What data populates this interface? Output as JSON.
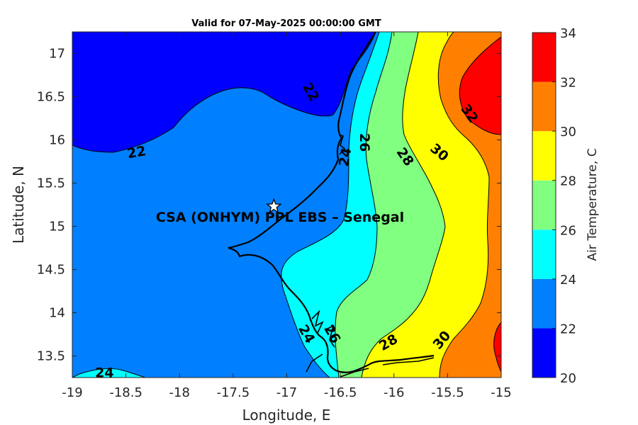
{
  "chart_data": {
    "type": "contour",
    "title": "Valid for 07-May-2025 00:00:00 GMT",
    "xlabel": "Longitude, E",
    "ylabel": "Latitude, N",
    "xlim": [
      -19,
      -15
    ],
    "ylim": [
      13.25,
      17.25
    ],
    "xticks": [
      "-19",
      "-18.5",
      "-18",
      "-17.5",
      "-17",
      "-16.5",
      "-16",
      "-15.5",
      "-15"
    ],
    "yticks": [
      "13.5",
      "14",
      "14.5",
      "15",
      "15.5",
      "16",
      "16.5",
      "17"
    ],
    "colorbar": {
      "label": "Air Temperature, C",
      "ticks": [
        "20",
        "22",
        "24",
        "26",
        "28",
        "30",
        "32",
        "34"
      ],
      "levels": [
        20,
        22,
        24,
        26,
        28,
        30,
        32,
        34
      ],
      "colors": [
        "#0000ff",
        "#0080ff",
        "#00ffff",
        "#80ff80",
        "#ffff00",
        "#ff8000",
        "#ff0000",
        "#800000"
      ]
    },
    "contour_labels": [
      {
        "text": "22",
        "lon": -16.78,
        "lat": 16.55,
        "rotate": 60
      },
      {
        "text": "22",
        "lon": -18.4,
        "lat": 15.85,
        "rotate": -10
      },
      {
        "text": "24",
        "lon": -16.45,
        "lat": 15.8,
        "rotate": -80
      },
      {
        "text": "26",
        "lon": -16.28,
        "lat": 15.97,
        "rotate": 90
      },
      {
        "text": "28",
        "lon": -15.9,
        "lat": 15.8,
        "rotate": 55
      },
      {
        "text": "30",
        "lon": -15.58,
        "lat": 15.85,
        "rotate": 40
      },
      {
        "text": "32",
        "lon": -15.3,
        "lat": 16.3,
        "rotate": 55
      },
      {
        "text": "24",
        "lon": -18.7,
        "lat": 13.3,
        "rotate": 0
      },
      {
        "text": "28",
        "lon": -16.05,
        "lat": 13.65,
        "rotate": -30
      },
      {
        "text": "30",
        "lon": -15.55,
        "lat": 13.68,
        "rotate": -50
      },
      {
        "text": "24",
        "lon": -16.82,
        "lat": 13.75,
        "rotate": 60
      },
      {
        "text": "26",
        "lon": -16.58,
        "lat": 13.75,
        "rotate": 60
      }
    ],
    "marker": {
      "lon": -17.12,
      "lat": 15.23,
      "label": "CSA (ONHYM) PPL EBS  – Senegal"
    }
  }
}
